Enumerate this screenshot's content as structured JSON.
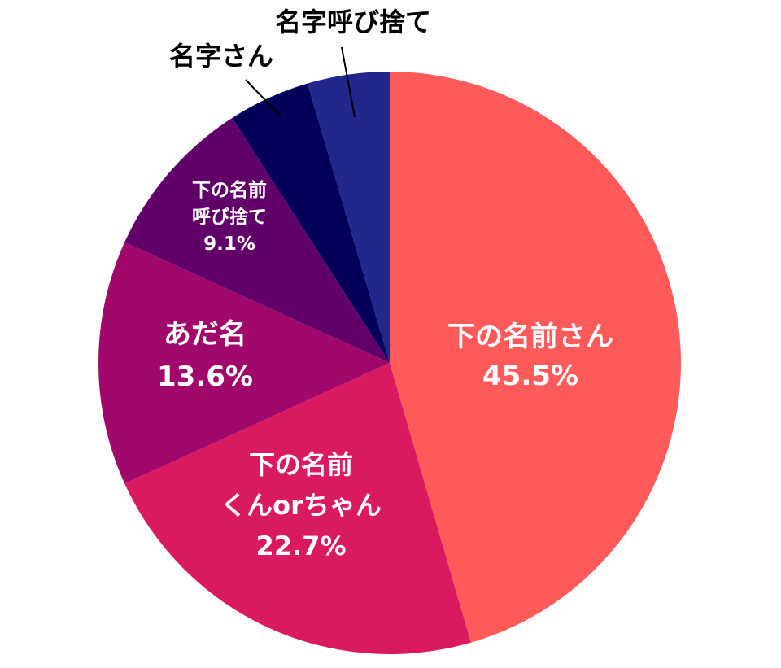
{
  "chart_data": {
    "type": "pie",
    "title": "",
    "start": "top",
    "direction": "clockwise",
    "slices": [
      {
        "lines": [
          "下の名前さん"
        ],
        "value_label": "45.5%",
        "value": 45.5,
        "color": "#FF5A5A",
        "label_pos": "inside"
      },
      {
        "lines": [
          "下の名前",
          "くんorちゃん"
        ],
        "value_label": "22.7%",
        "value": 22.7,
        "color": "#D91A61",
        "label_pos": "inside"
      },
      {
        "lines": [
          "あだ名"
        ],
        "value_label": "13.6%",
        "value": 13.6,
        "color": "#A0086C",
        "label_pos": "inside"
      },
      {
        "lines": [
          "下の名前",
          "呼び捨て"
        ],
        "value_label": "9.1%",
        "value": 9.1,
        "color": "#600068",
        "label_pos": "inside"
      },
      {
        "lines": [
          "名字さん"
        ],
        "value_label": "",
        "value": 4.55,
        "color": "#04005A",
        "label_pos": "outside"
      },
      {
        "lines": [
          "名字呼び捨て"
        ],
        "value_label": "",
        "value": 4.55,
        "color": "#23268A",
        "label_pos": "outside"
      }
    ]
  }
}
